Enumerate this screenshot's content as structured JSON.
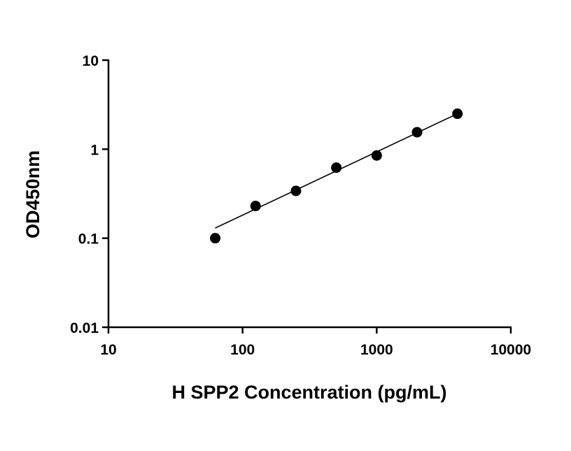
{
  "chart_data": {
    "type": "scatter",
    "title": "",
    "xlabel": "H SPP2 Concentration (pg/mL)",
    "ylabel": "OD450nm",
    "x_scale": "log",
    "y_scale": "log",
    "xlim": [
      10,
      10000
    ],
    "ylim": [
      0.01,
      10
    ],
    "x_ticks": [
      10,
      100,
      1000,
      10000
    ],
    "x_tick_labels": [
      "10",
      "100",
      "1000",
      "10000"
    ],
    "y_ticks": [
      0.01,
      0.1,
      1,
      10
    ],
    "y_tick_labels": [
      "0.01",
      "0.1",
      "1",
      "10"
    ],
    "grid": false,
    "legend": "none",
    "points": [
      {
        "x": 62.5,
        "y": 0.1
      },
      {
        "x": 125,
        "y": 0.23
      },
      {
        "x": 250,
        "y": 0.34
      },
      {
        "x": 500,
        "y": 0.62
      },
      {
        "x": 1000,
        "y": 0.85
      },
      {
        "x": 2000,
        "y": 1.55
      },
      {
        "x": 4000,
        "y": 2.5
      }
    ],
    "fit_line": {
      "x": [
        62.5,
        4000
      ],
      "y": [
        0.13,
        2.5
      ]
    },
    "colors": {
      "marker": "#000000",
      "line": "#000000",
      "axis": "#000000"
    }
  }
}
